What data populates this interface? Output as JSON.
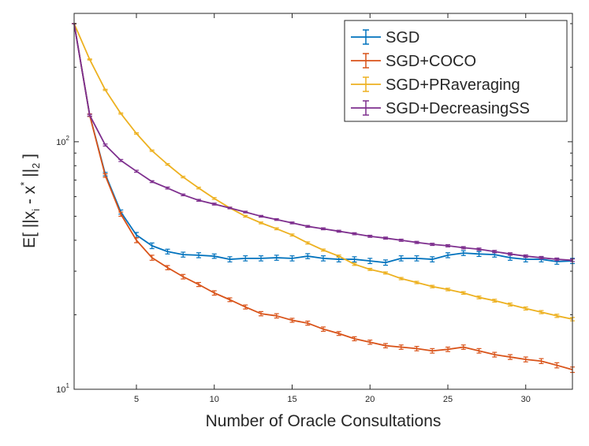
{
  "chart_data": {
    "type": "line",
    "xlabel": "Number of Oracle Consultations",
    "ylabel": {
      "prefix": "E[ ||x",
      "sub1": "i",
      "mid": " - x",
      "sup": "*",
      "end": " ||",
      "sub2": "2",
      "close": " ]"
    },
    "xlim": [
      1,
      33
    ],
    "ylim": [
      10,
      330
    ],
    "yscale": "log",
    "grid": false,
    "legend_position": "top-right",
    "x_ticks": [
      5,
      10,
      15,
      20,
      25,
      30
    ],
    "y_ticks": [
      {
        "value": 10,
        "base": "10",
        "exp": "1"
      },
      {
        "value": 100,
        "base": "10",
        "exp": "2"
      }
    ],
    "x": [
      1,
      2,
      3,
      4,
      5,
      6,
      7,
      8,
      9,
      10,
      11,
      12,
      13,
      14,
      15,
      16,
      17,
      18,
      19,
      20,
      21,
      22,
      23,
      24,
      25,
      26,
      27,
      28,
      29,
      30,
      31,
      32,
      33
    ],
    "series": [
      {
        "name": "SGD",
        "color": "#0072BD",
        "values": [
          300,
          128,
          74,
          52,
          42,
          38,
          36,
          35,
          34.8,
          34.5,
          33.5,
          33.8,
          33.8,
          34,
          33.8,
          34.5,
          33.8,
          33.5,
          33.5,
          33,
          32.5,
          33.8,
          33.8,
          33.5,
          34.8,
          35.5,
          35.2,
          35,
          34,
          33.5,
          33.5,
          32.8,
          33
        ],
        "errors": [
          0,
          1.5,
          1.2,
          1,
          1,
          1,
          0.8,
          0.8,
          0.8,
          0.7,
          0.8,
          0.8,
          0.8,
          0.8,
          0.8,
          0.8,
          0.8,
          0.8,
          0.8,
          0.8,
          0.8,
          0.8,
          0.8,
          0.8,
          0.8,
          0.8,
          0.8,
          0.8,
          0.8,
          0.8,
          0.8,
          0.8,
          0.8
        ]
      },
      {
        "name": "SGD+COCO",
        "color": "#D95319",
        "values": [
          300,
          128,
          73,
          51,
          40,
          34,
          31,
          28.5,
          26.5,
          24.5,
          23,
          21.5,
          20.2,
          19.8,
          19,
          18.5,
          17.5,
          16.8,
          16,
          15.5,
          15,
          14.8,
          14.6,
          14.3,
          14.5,
          14.8,
          14.3,
          13.8,
          13.5,
          13.2,
          13,
          12.5,
          12
        ],
        "errors": [
          0,
          1.5,
          1.2,
          1,
          0.9,
          0.8,
          0.6,
          0.6,
          0.5,
          0.5,
          0.4,
          0.4,
          0.4,
          0.4,
          0.35,
          0.35,
          0.35,
          0.3,
          0.3,
          0.3,
          0.3,
          0.3,
          0.3,
          0.3,
          0.3,
          0.3,
          0.3,
          0.3,
          0.3,
          0.3,
          0.3,
          0.3,
          0.3
        ]
      },
      {
        "name": "SGD+PRaveraging",
        "color": "#EDB120",
        "values": [
          300,
          215,
          162,
          130,
          108,
          92,
          81,
          72,
          65,
          59,
          54,
          50,
          47,
          44.5,
          42,
          39,
          36.5,
          34.5,
          32,
          30.5,
          29.5,
          28,
          27,
          26,
          25.3,
          24.5,
          23.5,
          22.8,
          22,
          21.2,
          20.5,
          19.8,
          19.2
        ],
        "errors": [
          0,
          1,
          0.9,
          0.8,
          0.7,
          0.6,
          0.6,
          0.5,
          0.5,
          0.5,
          0.4,
          0.4,
          0.4,
          0.4,
          0.4,
          0.4,
          0.35,
          0.35,
          0.35,
          0.3,
          0.3,
          0.3,
          0.3,
          0.3,
          0.3,
          0.3,
          0.3,
          0.3,
          0.3,
          0.3,
          0.3,
          0.3,
          0.3
        ]
      },
      {
        "name": "SGD+DecreasingSS",
        "color": "#7E2F8E",
        "values": [
          300,
          128,
          97,
          84,
          76,
          69,
          65,
          61,
          58,
          56,
          54,
          52,
          50,
          48.5,
          47,
          45.5,
          44.5,
          43.5,
          42.5,
          41.5,
          40.8,
          40,
          39.2,
          38.5,
          38,
          37.3,
          36.8,
          36,
          35.2,
          34.5,
          34,
          33.5,
          33.2
        ],
        "errors": [
          0,
          1,
          0.9,
          0.8,
          0.7,
          0.6,
          0.6,
          0.5,
          0.5,
          0.5,
          0.4,
          0.4,
          0.4,
          0.4,
          0.4,
          0.4,
          0.4,
          0.4,
          0.4,
          0.4,
          0.4,
          0.4,
          0.4,
          0.4,
          0.4,
          0.4,
          0.4,
          0.4,
          0.4,
          0.4,
          0.4,
          0.4,
          0.4
        ]
      }
    ]
  }
}
